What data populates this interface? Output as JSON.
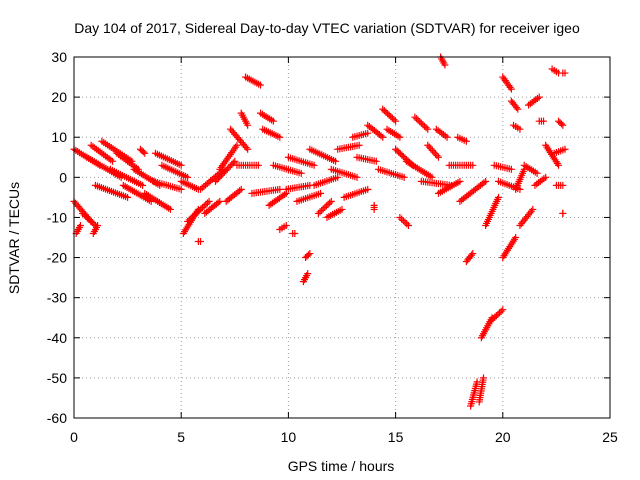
{
  "chart_data": {
    "type": "scatter",
    "title": "Day 104 of 2017, Sidereal Day-to-day VTEC variation (SDTVAR) for receiver igeo",
    "xlabel": "GPS time / hours",
    "ylabel": "SDTVAR / TECUs",
    "xlim": [
      0,
      25
    ],
    "ylim": [
      -60,
      30
    ],
    "xticks": [
      "0",
      "5",
      "10",
      "15",
      "20",
      "25"
    ],
    "yticks": [
      "-60",
      "-50",
      "-40",
      "-30",
      "-20",
      "-10",
      "0",
      "10",
      "20",
      "30"
    ],
    "grid": true,
    "marker": "plus",
    "color": "#ff0000",
    "tracks": [
      {
        "start": [
          0.0,
          -6
        ],
        "end": [
          0.8,
          -11
        ]
      },
      {
        "start": [
          0.0,
          7
        ],
        "end": [
          1.2,
          3
        ]
      },
      {
        "start": [
          0.1,
          -14
        ],
        "end": [
          0.3,
          -12
        ]
      },
      {
        "start": [
          0.4,
          -9
        ],
        "end": [
          1.0,
          -12
        ]
      },
      {
        "start": [
          0.6,
          5
        ],
        "end": [
          2.2,
          0
        ]
      },
      {
        "start": [
          0.8,
          8
        ],
        "end": [
          1.8,
          4
        ]
      },
      {
        "start": [
          0.9,
          -14
        ],
        "end": [
          1.1,
          -12
        ]
      },
      {
        "start": [
          1.0,
          -2
        ],
        "end": [
          2.5,
          -5
        ]
      },
      {
        "start": [
          1.3,
          9
        ],
        "end": [
          2.7,
          4
        ]
      },
      {
        "start": [
          1.7,
          2
        ],
        "end": [
          3.2,
          -2
        ]
      },
      {
        "start": [
          2.0,
          6
        ],
        "end": [
          3.0,
          2
        ]
      },
      {
        "start": [
          2.3,
          -2
        ],
        "end": [
          3.6,
          -6
        ]
      },
      {
        "start": [
          2.8,
          2
        ],
        "end": [
          4.0,
          -2
        ]
      },
      {
        "start": [
          3.1,
          7
        ],
        "end": [
          3.3,
          6
        ]
      },
      {
        "start": [
          3.3,
          -4
        ],
        "end": [
          4.5,
          -8
        ]
      },
      {
        "start": [
          3.7,
          -1
        ],
        "end": [
          5.0,
          -3
        ]
      },
      {
        "start": [
          3.8,
          6
        ],
        "end": [
          5.0,
          3
        ]
      },
      {
        "start": [
          4.1,
          3
        ],
        "end": [
          5.3,
          0
        ]
      },
      {
        "start": [
          5.0,
          -1
        ],
        "end": [
          5.8,
          -3
        ]
      },
      {
        "start": [
          5.1,
          -14
        ],
        "end": [
          5.8,
          -8
        ]
      },
      {
        "start": [
          5.3,
          -11
        ],
        "end": [
          6.3,
          -6
        ]
      },
      {
        "start": [
          5.8,
          -16
        ],
        "end": [
          5.9,
          -16
        ]
      },
      {
        "start": [
          5.9,
          -3
        ],
        "end": [
          7.0,
          2
        ]
      },
      {
        "start": [
          6.1,
          -9
        ],
        "end": [
          6.8,
          -6
        ]
      },
      {
        "start": [
          6.6,
          -1
        ],
        "end": [
          7.5,
          4
        ]
      },
      {
        "start": [
          6.8,
          2
        ],
        "end": [
          7.6,
          8
        ]
      },
      {
        "start": [
          7.1,
          -6
        ],
        "end": [
          7.8,
          -3
        ]
      },
      {
        "start": [
          7.3,
          12
        ],
        "end": [
          8.1,
          7
        ]
      },
      {
        "start": [
          7.6,
          3
        ],
        "end": [
          8.6,
          3
        ]
      },
      {
        "start": [
          7.8,
          16
        ],
        "end": [
          8.1,
          13
        ]
      },
      {
        "start": [
          8.0,
          25
        ],
        "end": [
          8.7,
          23
        ]
      },
      {
        "start": [
          8.3,
          -4
        ],
        "end": [
          9.6,
          -3
        ]
      },
      {
        "start": [
          8.7,
          16
        ],
        "end": [
          9.3,
          14
        ]
      },
      {
        "start": [
          8.8,
          12
        ],
        "end": [
          9.6,
          10
        ]
      },
      {
        "start": [
          9.1,
          -7
        ],
        "end": [
          9.9,
          -4
        ]
      },
      {
        "start": [
          9.3,
          3
        ],
        "end": [
          10.6,
          1
        ]
      },
      {
        "start": [
          9.6,
          -13
        ],
        "end": [
          9.9,
          -12
        ]
      },
      {
        "start": [
          9.9,
          -3
        ],
        "end": [
          11.0,
          -2
        ]
      },
      {
        "start": [
          10.0,
          5
        ],
        "end": [
          11.2,
          3
        ]
      },
      {
        "start": [
          10.2,
          -14
        ],
        "end": [
          10.3,
          -14
        ]
      },
      {
        "start": [
          10.4,
          -6
        ],
        "end": [
          11.5,
          -4
        ]
      },
      {
        "start": [
          10.7,
          -26
        ],
        "end": [
          10.9,
          -24
        ]
      },
      {
        "start": [
          10.8,
          -20
        ],
        "end": [
          11.0,
          -19
        ]
      },
      {
        "start": [
          11.0,
          7
        ],
        "end": [
          12.2,
          4
        ]
      },
      {
        "start": [
          11.2,
          -2
        ],
        "end": [
          12.3,
          0
        ]
      },
      {
        "start": [
          11.4,
          -9
        ],
        "end": [
          12.0,
          -6
        ]
      },
      {
        "start": [
          11.8,
          -10
        ],
        "end": [
          12.5,
          -8
        ]
      },
      {
        "start": [
          12.0,
          2
        ],
        "end": [
          13.2,
          0
        ]
      },
      {
        "start": [
          12.3,
          7
        ],
        "end": [
          13.3,
          8
        ]
      },
      {
        "start": [
          12.6,
          -5
        ],
        "end": [
          13.7,
          -3
        ]
      },
      {
        "start": [
          13.0,
          10
        ],
        "end": [
          13.7,
          11
        ]
      },
      {
        "start": [
          13.2,
          5
        ],
        "end": [
          14.1,
          4
        ]
      },
      {
        "start": [
          13.7,
          13
        ],
        "end": [
          14.4,
          10
        ]
      },
      {
        "start": [
          14.0,
          -8
        ],
        "end": [
          14.0,
          -7
        ]
      },
      {
        "start": [
          14.2,
          2
        ],
        "end": [
          15.4,
          0
        ]
      },
      {
        "start": [
          14.4,
          17
        ],
        "end": [
          15.0,
          14
        ]
      },
      {
        "start": [
          14.6,
          12
        ],
        "end": [
          15.2,
          10
        ]
      },
      {
        "start": [
          15.0,
          7
        ],
        "end": [
          15.8,
          3
        ]
      },
      {
        "start": [
          15.2,
          -10
        ],
        "end": [
          15.6,
          -12
        ]
      },
      {
        "start": [
          15.5,
          4
        ],
        "end": [
          16.7,
          0
        ]
      },
      {
        "start": [
          15.9,
          15
        ],
        "end": [
          16.5,
          12
        ]
      },
      {
        "start": [
          16.2,
          -1
        ],
        "end": [
          17.6,
          -2
        ]
      },
      {
        "start": [
          16.5,
          8
        ],
        "end": [
          17.0,
          5
        ]
      },
      {
        "start": [
          16.9,
          12
        ],
        "end": [
          17.4,
          10
        ]
      },
      {
        "start": [
          17.0,
          -4
        ],
        "end": [
          18.0,
          -1
        ]
      },
      {
        "start": [
          17.1,
          30
        ],
        "end": [
          17.3,
          28
        ]
      },
      {
        "start": [
          17.5,
          3
        ],
        "end": [
          18.6,
          3
        ]
      },
      {
        "start": [
          17.9,
          10
        ],
        "end": [
          18.3,
          9
        ]
      },
      {
        "start": [
          18.0,
          -6
        ],
        "end": [
          19.2,
          -1
        ]
      },
      {
        "start": [
          18.3,
          -21
        ],
        "end": [
          18.6,
          -19
        ]
      },
      {
        "start": [
          18.5,
          -57
        ],
        "end": [
          18.8,
          -51
        ]
      },
      {
        "start": [
          18.9,
          -56
        ],
        "end": [
          19.1,
          -50
        ]
      },
      {
        "start": [
          19.0,
          -40
        ],
        "end": [
          19.5,
          -35
        ]
      },
      {
        "start": [
          19.2,
          -12
        ],
        "end": [
          19.8,
          -5
        ]
      },
      {
        "start": [
          19.4,
          -36
        ],
        "end": [
          20.0,
          -33
        ]
      },
      {
        "start": [
          19.6,
          3
        ],
        "end": [
          20.4,
          2
        ]
      },
      {
        "start": [
          19.8,
          -1
        ],
        "end": [
          20.8,
          -3
        ]
      },
      {
        "start": [
          20.0,
          25
        ],
        "end": [
          20.4,
          22
        ]
      },
      {
        "start": [
          20.0,
          -20
        ],
        "end": [
          20.6,
          -15
        ]
      },
      {
        "start": [
          20.4,
          19
        ],
        "end": [
          20.7,
          17
        ]
      },
      {
        "start": [
          20.5,
          13
        ],
        "end": [
          20.8,
          12
        ]
      },
      {
        "start": [
          20.6,
          -3
        ],
        "end": [
          21.0,
          2
        ]
      },
      {
        "start": [
          20.8,
          -12
        ],
        "end": [
          21.4,
          -8
        ]
      },
      {
        "start": [
          21.0,
          3
        ],
        "end": [
          21.6,
          1
        ]
      },
      {
        "start": [
          21.2,
          18
        ],
        "end": [
          21.7,
          20
        ]
      },
      {
        "start": [
          21.5,
          -2
        ],
        "end": [
          22.0,
          0
        ]
      },
      {
        "start": [
          21.7,
          14
        ],
        "end": [
          21.9,
          14
        ]
      },
      {
        "start": [
          22.0,
          8
        ],
        "end": [
          22.6,
          3
        ]
      },
      {
        "start": [
          22.3,
          27
        ],
        "end": [
          22.6,
          26
        ]
      },
      {
        "start": [
          22.4,
          6
        ],
        "end": [
          22.9,
          7
        ]
      },
      {
        "start": [
          22.5,
          -2
        ],
        "end": [
          22.8,
          -2
        ]
      },
      {
        "start": [
          22.6,
          14
        ],
        "end": [
          22.8,
          13
        ]
      },
      {
        "start": [
          22.8,
          26
        ],
        "end": [
          22.9,
          26
        ]
      },
      {
        "start": [
          22.8,
          -9
        ],
        "end": [
          22.8,
          -9
        ]
      }
    ]
  }
}
